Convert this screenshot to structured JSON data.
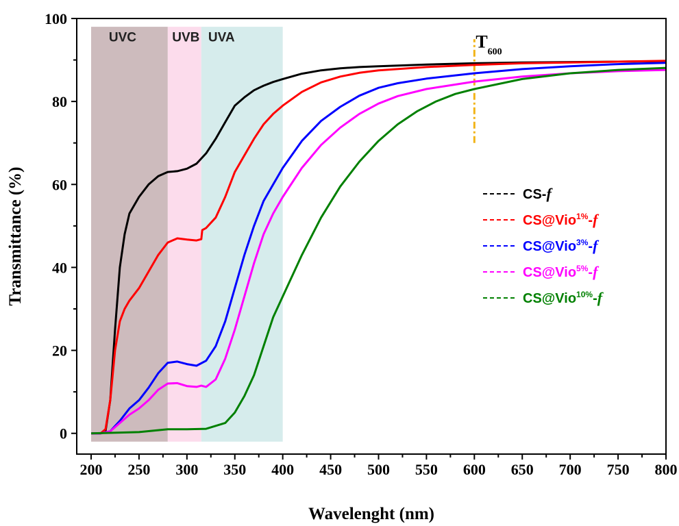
{
  "chart_data": {
    "type": "line",
    "title": "",
    "xlabel": "Wavelenght (nm)",
    "ylabel": "Transmittance (%)",
    "xlim": [
      185,
      800
    ],
    "ylim": [
      -5,
      100
    ],
    "x_ticks": [
      200,
      250,
      300,
      350,
      400,
      450,
      500,
      550,
      600,
      650,
      700,
      750,
      800
    ],
    "y_ticks": [
      0,
      20,
      40,
      60,
      80,
      100
    ],
    "grid": false,
    "legend_position": "right-middle",
    "bands": [
      {
        "label": "UVC",
        "x0": 200,
        "x1": 280,
        "color": "#cdbbbd"
      },
      {
        "label": "UVB",
        "x0": 280,
        "x1": 315,
        "color": "#fcdcec"
      },
      {
        "label": "UVA",
        "x0": 315,
        "x1": 400,
        "color": "#d6ecec"
      }
    ],
    "marker": {
      "label": "T",
      "subscript": "600",
      "x": 600,
      "y0": 70,
      "y1": 95,
      "color": "#f2b418"
    },
    "series": [
      {
        "name_prefix": "CS-",
        "name_sup": "",
        "name_suffix": "f",
        "color": "#000000",
        "points": [
          [
            200,
            0
          ],
          [
            210,
            0
          ],
          [
            215,
            0.5
          ],
          [
            220,
            8
          ],
          [
            225,
            25
          ],
          [
            230,
            40
          ],
          [
            235,
            48
          ],
          [
            240,
            53
          ],
          [
            250,
            57
          ],
          [
            260,
            60
          ],
          [
            270,
            62
          ],
          [
            280,
            63
          ],
          [
            290,
            63.2
          ],
          [
            300,
            63.8
          ],
          [
            310,
            65
          ],
          [
            320,
            67.5
          ],
          [
            330,
            71
          ],
          [
            340,
            75
          ],
          [
            350,
            79
          ],
          [
            360,
            81
          ],
          [
            370,
            82.7
          ],
          [
            380,
            83.8
          ],
          [
            390,
            84.7
          ],
          [
            400,
            85.4
          ],
          [
            420,
            86.7
          ],
          [
            440,
            87.5
          ],
          [
            460,
            88
          ],
          [
            480,
            88.3
          ],
          [
            500,
            88.5
          ],
          [
            550,
            88.9
          ],
          [
            600,
            89.2
          ],
          [
            650,
            89.4
          ],
          [
            700,
            89.5
          ],
          [
            750,
            89.6
          ],
          [
            800,
            89.7
          ]
        ]
      },
      {
        "name_prefix": "CS@Vio",
        "name_sup": "1%",
        "name_suffix": "f",
        "color": "#ff0000",
        "points": [
          [
            200,
            0
          ],
          [
            210,
            0
          ],
          [
            215,
            1
          ],
          [
            220,
            8
          ],
          [
            225,
            20
          ],
          [
            230,
            27
          ],
          [
            235,
            30
          ],
          [
            240,
            32
          ],
          [
            250,
            35
          ],
          [
            260,
            39
          ],
          [
            270,
            43
          ],
          [
            280,
            46
          ],
          [
            290,
            47
          ],
          [
            300,
            46.7
          ],
          [
            310,
            46.5
          ],
          [
            315,
            46.8
          ],
          [
            316,
            49
          ],
          [
            320,
            49.5
          ],
          [
            330,
            52
          ],
          [
            340,
            57
          ],
          [
            350,
            63
          ],
          [
            360,
            67
          ],
          [
            370,
            71
          ],
          [
            380,
            74.5
          ],
          [
            390,
            77
          ],
          [
            400,
            79
          ],
          [
            420,
            82.3
          ],
          [
            440,
            84.6
          ],
          [
            460,
            86
          ],
          [
            480,
            86.9
          ],
          [
            500,
            87.5
          ],
          [
            550,
            88.3
          ],
          [
            600,
            88.8
          ],
          [
            650,
            89.2
          ],
          [
            700,
            89.4
          ],
          [
            750,
            89.6
          ],
          [
            800,
            89.8
          ]
        ]
      },
      {
        "name_prefix": "CS@Vio",
        "name_sup": "3%",
        "name_suffix": "f",
        "color": "#0000ff",
        "points": [
          [
            200,
            0
          ],
          [
            210,
            0
          ],
          [
            220,
            0.5
          ],
          [
            230,
            3
          ],
          [
            240,
            6
          ],
          [
            250,
            8
          ],
          [
            260,
            11
          ],
          [
            270,
            14.5
          ],
          [
            280,
            17
          ],
          [
            290,
            17.3
          ],
          [
            300,
            16.7
          ],
          [
            310,
            16.3
          ],
          [
            320,
            17.5
          ],
          [
            330,
            21
          ],
          [
            340,
            27
          ],
          [
            350,
            35
          ],
          [
            360,
            43
          ],
          [
            370,
            50
          ],
          [
            380,
            56
          ],
          [
            390,
            60
          ],
          [
            400,
            64
          ],
          [
            420,
            70.5
          ],
          [
            440,
            75.3
          ],
          [
            460,
            78.7
          ],
          [
            480,
            81.4
          ],
          [
            500,
            83.3
          ],
          [
            520,
            84.4
          ],
          [
            550,
            85.5
          ],
          [
            600,
            86.8
          ],
          [
            650,
            87.8
          ],
          [
            700,
            88.5
          ],
          [
            750,
            89
          ],
          [
            800,
            89.3
          ]
        ]
      },
      {
        "name_prefix": "CS@Vio",
        "name_sup": "5%",
        "name_suffix": "f",
        "color": "#ff00ff",
        "points": [
          [
            200,
            0
          ],
          [
            210,
            0
          ],
          [
            220,
            0.5
          ],
          [
            230,
            2.5
          ],
          [
            240,
            4.5
          ],
          [
            250,
            6
          ],
          [
            260,
            8
          ],
          [
            270,
            10.5
          ],
          [
            280,
            12
          ],
          [
            290,
            12.1
          ],
          [
            300,
            11.4
          ],
          [
            310,
            11.2
          ],
          [
            315,
            11.5
          ],
          [
            320,
            11.2
          ],
          [
            330,
            13
          ],
          [
            340,
            18
          ],
          [
            350,
            25
          ],
          [
            360,
            33
          ],
          [
            370,
            41
          ],
          [
            380,
            48
          ],
          [
            390,
            53
          ],
          [
            400,
            57
          ],
          [
            420,
            64
          ],
          [
            440,
            69.5
          ],
          [
            460,
            73.7
          ],
          [
            480,
            77
          ],
          [
            500,
            79.5
          ],
          [
            520,
            81.3
          ],
          [
            550,
            83
          ],
          [
            600,
            84.8
          ],
          [
            650,
            86
          ],
          [
            700,
            86.8
          ],
          [
            750,
            87.3
          ],
          [
            800,
            87.6
          ]
        ]
      },
      {
        "name_prefix": "CS@Vio",
        "name_sup": "10%",
        "name_suffix": "f",
        "color": "#008000",
        "points": [
          [
            200,
            0
          ],
          [
            250,
            0.3
          ],
          [
            280,
            1
          ],
          [
            300,
            1
          ],
          [
            320,
            1.1
          ],
          [
            340,
            2.5
          ],
          [
            350,
            5
          ],
          [
            360,
            9
          ],
          [
            370,
            14
          ],
          [
            380,
            21
          ],
          [
            390,
            28
          ],
          [
            400,
            33
          ],
          [
            420,
            43
          ],
          [
            440,
            52
          ],
          [
            460,
            59.5
          ],
          [
            480,
            65.5
          ],
          [
            500,
            70.5
          ],
          [
            520,
            74.5
          ],
          [
            540,
            77.6
          ],
          [
            560,
            80
          ],
          [
            580,
            81.8
          ],
          [
            600,
            83
          ],
          [
            650,
            85.4
          ],
          [
            700,
            86.8
          ],
          [
            750,
            87.6
          ],
          [
            800,
            88.1
          ]
        ]
      }
    ]
  }
}
